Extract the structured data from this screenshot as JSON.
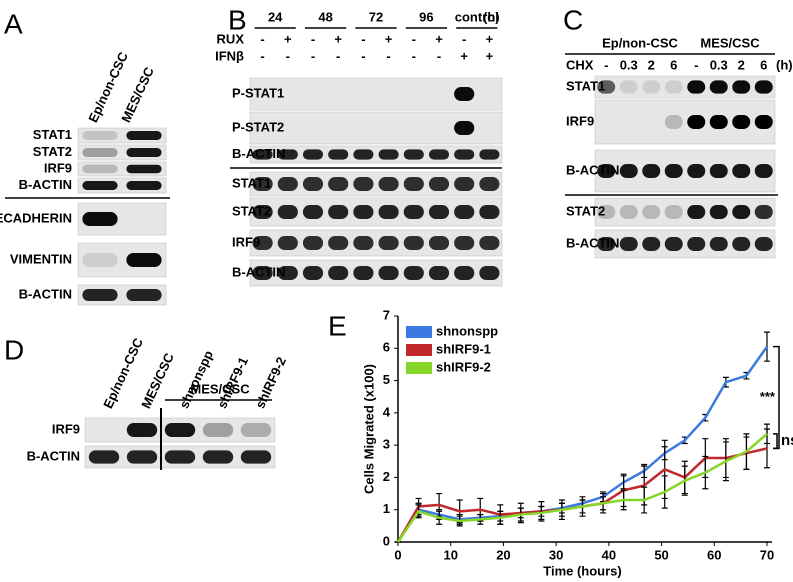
{
  "panels": {
    "A": {
      "label": "A",
      "columns": [
        "Ep/non-CSC",
        "MES/CSC"
      ],
      "rows": [
        "STAT1",
        "STAT2",
        "IRF9",
        "B-ACTIN",
        "ECADHERIN",
        "VIMENTIN",
        "B-ACTIN"
      ]
    },
    "B": {
      "label": "B",
      "timepoints": [
        "24",
        "48",
        "72",
        "96",
        "control"
      ],
      "unit": "(h)",
      "treatments": [
        "RUX",
        "IFNβ"
      ],
      "rux": [
        "-",
        "+",
        "-",
        "+",
        "-",
        "+",
        "-",
        "+",
        "-",
        "+"
      ],
      "ifn": [
        "-",
        "-",
        "-",
        "-",
        "-",
        "-",
        "-",
        "-",
        "+",
        "+"
      ],
      "rows": [
        "P-STAT1",
        "P-STAT2",
        "B-ACTIN",
        "STAT1",
        "STAT2",
        "IRF9",
        "B-ACTIN"
      ]
    },
    "C": {
      "label": "C",
      "groups": [
        "Ep/non-CSC",
        "MES/CSC"
      ],
      "treatment": "CHX",
      "chx": [
        "-",
        "0.3",
        "2",
        "6",
        "-",
        "0.3",
        "2",
        "6"
      ],
      "unit": "(h)",
      "rows": [
        "STAT1",
        "IRF9",
        "B-ACTIN",
        "STAT2",
        "B-ACTIN"
      ]
    },
    "D": {
      "label": "D",
      "columns": [
        "Ep/non-CSC",
        "MES/CSC",
        "shnonspp",
        "shIRF9-1",
        "shIRF9-2"
      ],
      "group": "MES/CSC",
      "rows": [
        "IRF9",
        "B-ACTIN"
      ]
    }
  },
  "chart_data": {
    "type": "line",
    "panel_label": "E",
    "xlabel": "Time (hours)",
    "ylabel": "Cells Migrated (x100)",
    "x": [
      0,
      3.9,
      7.8,
      11.7,
      15.6,
      19.4,
      23.3,
      27.2,
      31.1,
      35,
      38.9,
      42.8,
      46.7,
      50.6,
      54.4,
      58.3,
      62.2,
      66.1,
      70
    ],
    "series": [
      {
        "name": "shnonspp",
        "color": "#3b78e0",
        "values": [
          0,
          1.0,
          0.85,
          0.7,
          0.75,
          0.8,
          0.9,
          0.95,
          1.05,
          1.2,
          1.4,
          1.85,
          2.2,
          2.75,
          3.15,
          3.85,
          4.95,
          5.15,
          6.05
        ],
        "errors": [
          0,
          0.2,
          0.15,
          0.15,
          0.1,
          0.15,
          0.15,
          0.15,
          0.15,
          0.1,
          0.15,
          0.2,
          0.2,
          0.2,
          0.1,
          0.1,
          0.15,
          0.1,
          0.45
        ]
      },
      {
        "name": "shIRF9-1",
        "color": "#c0282c",
        "values": [
          0,
          1.1,
          1.15,
          0.95,
          1.0,
          0.85,
          0.9,
          0.95,
          1.0,
          1.1,
          1.2,
          1.6,
          1.75,
          2.25,
          2.0,
          2.6,
          2.6,
          2.75,
          2.9
        ],
        "errors": [
          0,
          0.25,
          0.35,
          0.35,
          0.35,
          0.3,
          0.3,
          0.3,
          0.3,
          0.3,
          0.3,
          0.5,
          0.6,
          0.9,
          0.5,
          0.6,
          0.6,
          0.5,
          0.6
        ]
      },
      {
        "name": "shIRF9-2",
        "color": "#86d62a",
        "values": [
          0,
          0.95,
          0.75,
          0.65,
          0.7,
          0.75,
          0.85,
          0.9,
          1.0,
          1.1,
          1.2,
          1.3,
          1.3,
          1.55,
          1.9,
          2.15,
          2.5,
          2.8,
          3.35
        ],
        "errors": [
          0,
          0.2,
          0.2,
          0.15,
          0.15,
          0.2,
          0.2,
          0.2,
          0.2,
          0.2,
          0.2,
          0.3,
          0.4,
          0.5,
          0.45,
          0.5,
          0.6,
          0.55,
          0.3
        ]
      }
    ],
    "xlim": [
      0,
      70
    ],
    "xticks": [
      0,
      10,
      20,
      30,
      40,
      50,
      60,
      70
    ],
    "ylim": [
      0,
      7
    ],
    "yticks": [
      0,
      1,
      2,
      3,
      4,
      5,
      6,
      7
    ],
    "legend": "upper left",
    "annotations": [
      "***",
      "ns"
    ]
  }
}
